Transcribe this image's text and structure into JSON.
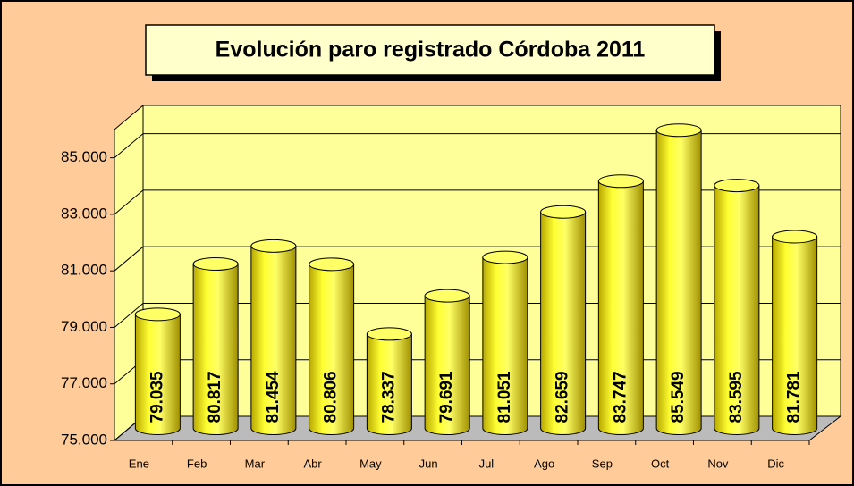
{
  "chart_data": {
    "type": "bar3d",
    "title": "Evolución paro registrado Córdoba  2011",
    "categories": [
      "Ene",
      "Feb",
      "Mar",
      "Abr",
      "May",
      "Jun",
      "Jul",
      "Ago",
      "Sep",
      "Oct",
      "Nov",
      "Dic"
    ],
    "values": [
      79035,
      80817,
      81454,
      80806,
      78337,
      79691,
      81051,
      82659,
      83747,
      85549,
      83595,
      81781
    ],
    "value_labels": [
      "79.035",
      "80.817",
      "81.454",
      "80.806",
      "78.337",
      "79.691",
      "81.051",
      "82.659",
      "83.747",
      "85.549",
      "83.595",
      "81.781"
    ],
    "color": "#ffff00",
    "ylim": [
      75000,
      86000
    ],
    "yticks": [
      {
        "value": 75000,
        "label": "75.000"
      },
      {
        "value": 77000,
        "label": "77.000"
      },
      {
        "value": 79000,
        "label": "79.000"
      },
      {
        "value": 81000,
        "label": "81.000"
      },
      {
        "value": 83000,
        "label": "83.000"
      },
      {
        "value": 85000,
        "label": "85.000"
      }
    ],
    "grid": true
  }
}
